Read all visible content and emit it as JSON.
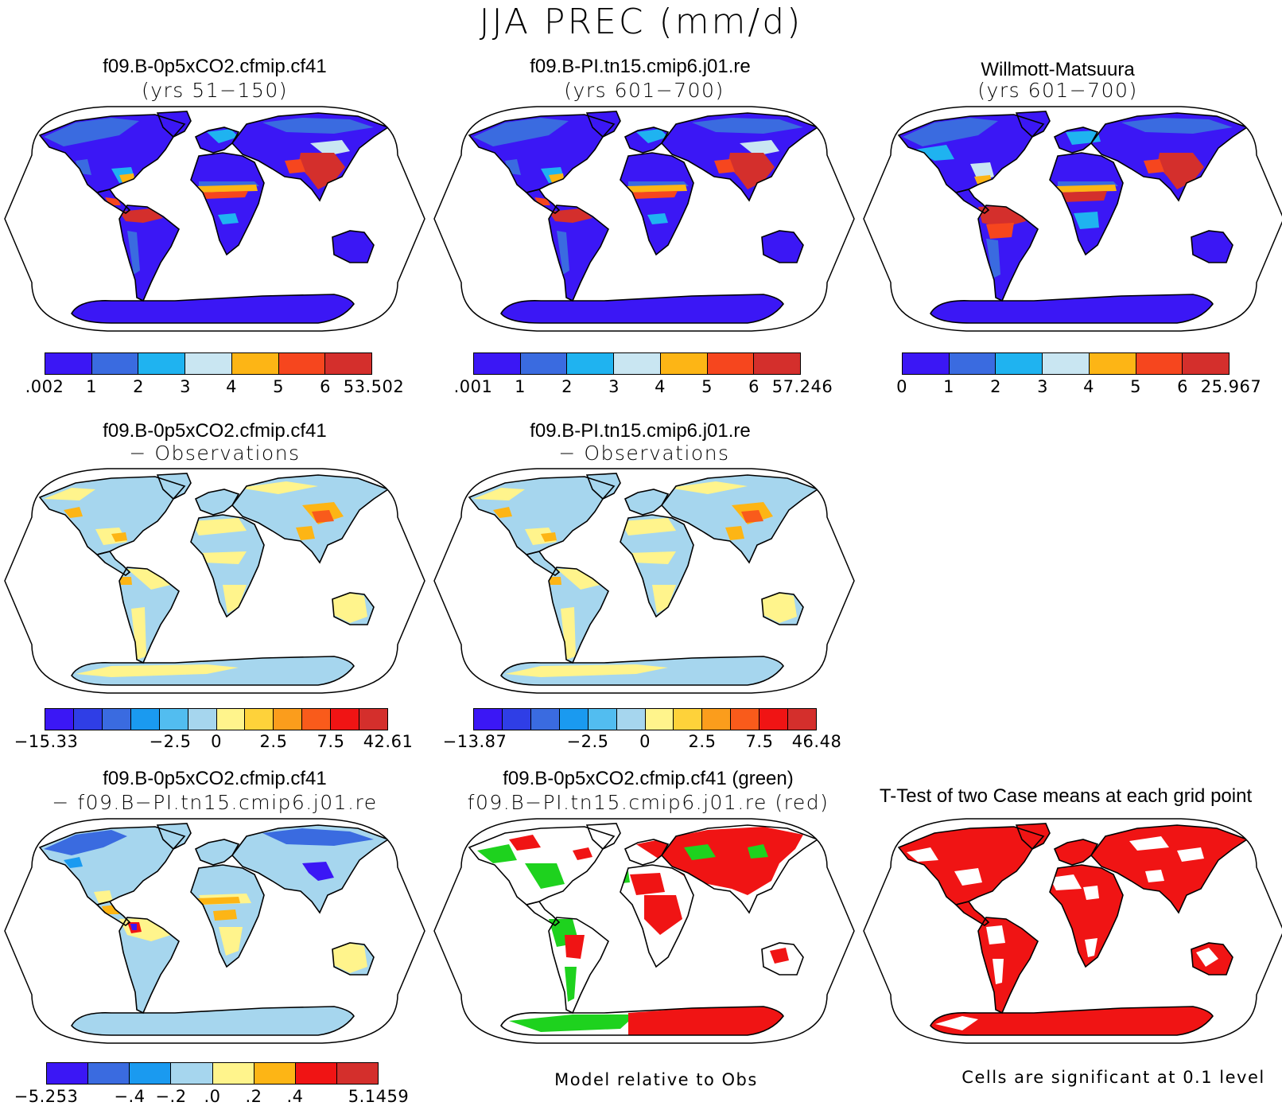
{
  "title": "JJA PREC (mm/d)",
  "panels": [
    {
      "id": "p1",
      "title1": "f09.B-0p5xCO2.cfmip.cf41",
      "title2": "(yrs 51−150)",
      "scheme": "abs"
    },
    {
      "id": "p2",
      "title1": "f09.B-PI.tn15.cmip6.j01.re",
      "title2": "(yrs 601−700)",
      "scheme": "abs"
    },
    {
      "id": "p3",
      "title1": "Willmott-Matsuura",
      "title2": "(yrs 601−700)",
      "scheme": "abs_obs"
    },
    {
      "id": "p4",
      "title1": "f09.B-0p5xCO2.cfmip.cf41",
      "title2": "− Observations",
      "scheme": "diff"
    },
    {
      "id": "p5",
      "title1": "f09.B-PI.tn15.cmip6.j01.re",
      "title2": "− Observations",
      "scheme": "diff"
    },
    {
      "id": "p6",
      "title1": "f09.B-0p5xCO2.cfmip.cf41",
      "title2": "− f09.B−PI.tn15.cmip6.j01.re",
      "scheme": "casediff"
    },
    {
      "id": "p7",
      "title1": "f09.B-0p5xCO2.cfmip.cf41 (green)",
      "title2": "f09.B−PI.tn15.cmip6.j01.re (red)",
      "scheme": "redgreen"
    },
    {
      "id": "p8",
      "title1": "T-Test of two Case means at each grid point",
      "title2": "",
      "scheme": "ttest"
    }
  ],
  "colorbars": [
    {
      "id": "cb1",
      "colors": [
        "#3b17f5",
        "#3a6be0",
        "#1fb3f0",
        "#c9e6f2",
        "#fdb515",
        "#f6461e",
        "#d42f2c"
      ],
      "labels": [
        ".002",
        "1",
        "2",
        "3",
        "4",
        "5",
        "6",
        "53.502"
      ]
    },
    {
      "id": "cb2",
      "colors": [
        "#3b17f5",
        "#3a6be0",
        "#1fb3f0",
        "#c9e6f2",
        "#fdb515",
        "#f6461e",
        "#d42f2c"
      ],
      "labels": [
        ".001",
        "1",
        "2",
        "3",
        "4",
        "5",
        "6",
        "57.246"
      ]
    },
    {
      "id": "cb3",
      "colors": [
        "#3b17f5",
        "#3a6be0",
        "#1fb3f0",
        "#c9e6f2",
        "#fdb515",
        "#f6461e",
        "#d42f2c"
      ],
      "labels": [
        "0",
        "1",
        "2",
        "3",
        "4",
        "5",
        "6",
        "25.967"
      ]
    },
    {
      "id": "cb4",
      "colors": [
        "#3b17f5",
        "#2f3ee6",
        "#3a6be0",
        "#1a9af0",
        "#52bdf0",
        "#a6d6ee",
        "#fff48c",
        "#fed23a",
        "#fb9d1c",
        "#f95b1b",
        "#f01414",
        "#d42f2c"
      ],
      "labels": [
        "−15.33",
        "−2.5",
        "0",
        "2.5",
        "7.5",
        "42.61"
      ]
    },
    {
      "id": "cb5",
      "colors": [
        "#3b17f5",
        "#2f3ee6",
        "#3a6be0",
        "#1a9af0",
        "#52bdf0",
        "#a6d6ee",
        "#fff48c",
        "#fed23a",
        "#fb9d1c",
        "#f95b1b",
        "#f01414",
        "#d42f2c"
      ],
      "labels": [
        "−13.87",
        "−2.5",
        "0",
        "2.5",
        "7.5",
        "46.48"
      ]
    },
    {
      "id": "cb6",
      "colors": [
        "#3b17f5",
        "#3a6be0",
        "#1a9af0",
        "#a6d6ee",
        "#fff48c",
        "#fdb515",
        "#f01414",
        "#d42f2c"
      ],
      "labels": [
        "−5.253",
        "−.4",
        "−.2",
        ".0",
        ".2",
        ".4",
        "5.1459"
      ]
    }
  ],
  "notes": {
    "model_relative": "Model relative to Obs",
    "significance": "Cells are significant at 0.1 level"
  }
}
